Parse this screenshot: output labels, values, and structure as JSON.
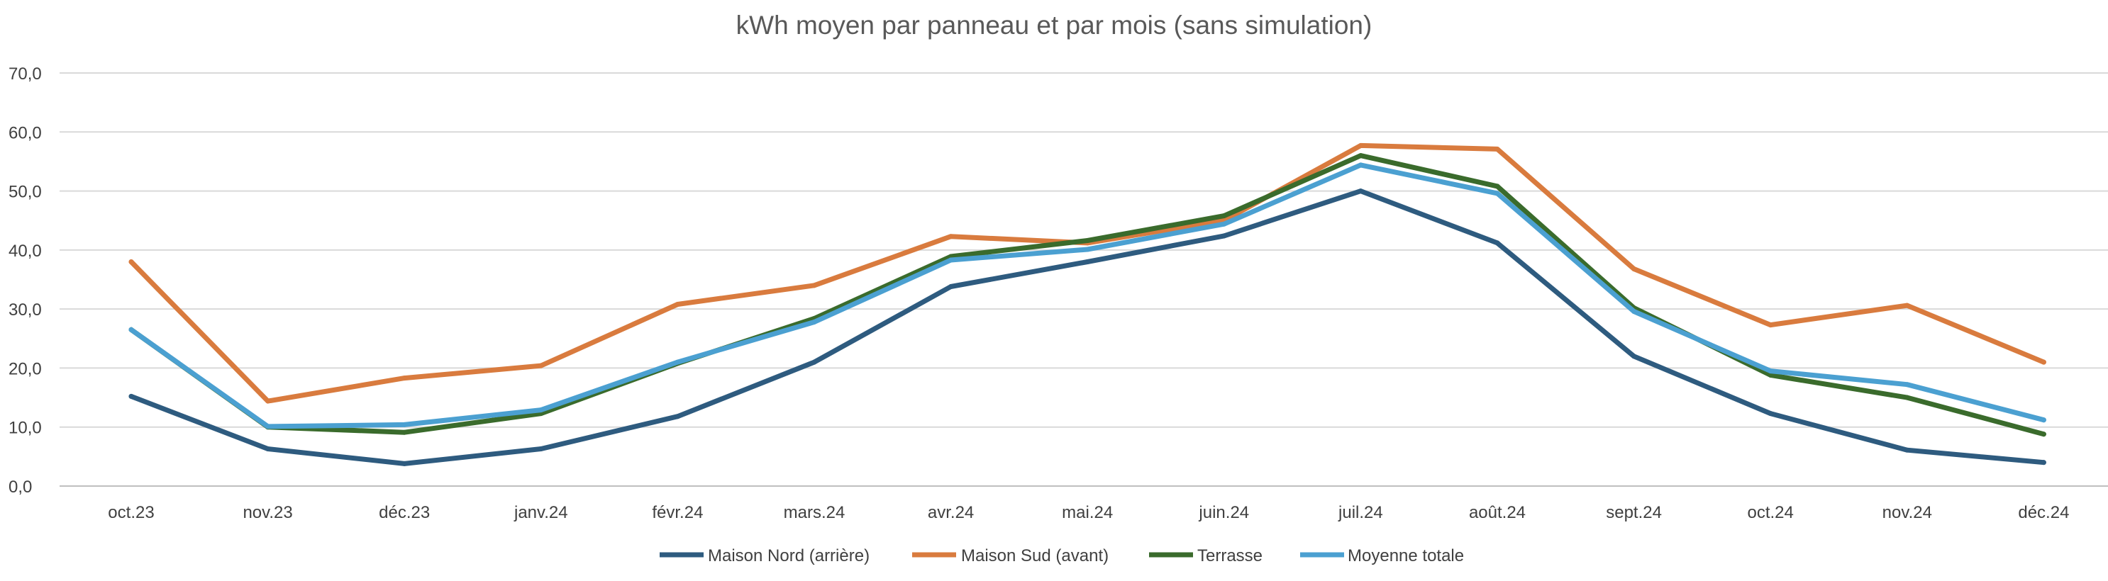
{
  "chart_data": {
    "type": "line",
    "title": "kWh moyen par panneau et par mois (sans simulation)",
    "xlabel": "",
    "ylabel": "",
    "ylim": [
      0,
      70
    ],
    "y_ticks": [
      "0,0",
      "10,0",
      "20,0",
      "30,0",
      "40,0",
      "50,0",
      "60,0",
      "70,0"
    ],
    "grid": true,
    "legend_position": "bottom",
    "categories": [
      "oct.23",
      "nov.23",
      "déc.23",
      "janv.24",
      "févr.24",
      "mars.24",
      "avr.24",
      "mai.24",
      "juin.24",
      "juil.24",
      "août.24",
      "sept.24",
      "oct.24",
      "nov.24",
      "déc.24"
    ],
    "series": [
      {
        "name": "Maison Nord (arrière)",
        "color": "#2e5b7f",
        "values": [
          15.2,
          6.3,
          3.8,
          6.3,
          11.8,
          21.0,
          33.8,
          38.0,
          42.4,
          50.0,
          41.2,
          22.0,
          12.3,
          6.1,
          4.0
        ]
      },
      {
        "name": "Maison Sud (avant)",
        "color": "#d97b3e",
        "values": [
          38.0,
          14.4,
          18.3,
          20.4,
          30.8,
          34.0,
          42.3,
          41.2,
          45.0,
          57.7,
          57.1,
          36.8,
          27.3,
          30.6,
          21.0
        ]
      },
      {
        "name": "Terrasse",
        "color": "#3a6b2c",
        "values": [
          26.5,
          10.0,
          9.1,
          12.3,
          20.8,
          28.4,
          38.9,
          41.6,
          45.8,
          56.0,
          50.8,
          30.2,
          18.8,
          15.0,
          8.8
        ]
      },
      {
        "name": "Moyenne totale",
        "color": "#4ba0d1",
        "values": [
          26.5,
          10.1,
          10.4,
          12.9,
          21.0,
          27.8,
          38.3,
          40.1,
          44.4,
          54.4,
          49.6,
          29.6,
          19.5,
          17.2,
          11.2
        ]
      }
    ]
  }
}
